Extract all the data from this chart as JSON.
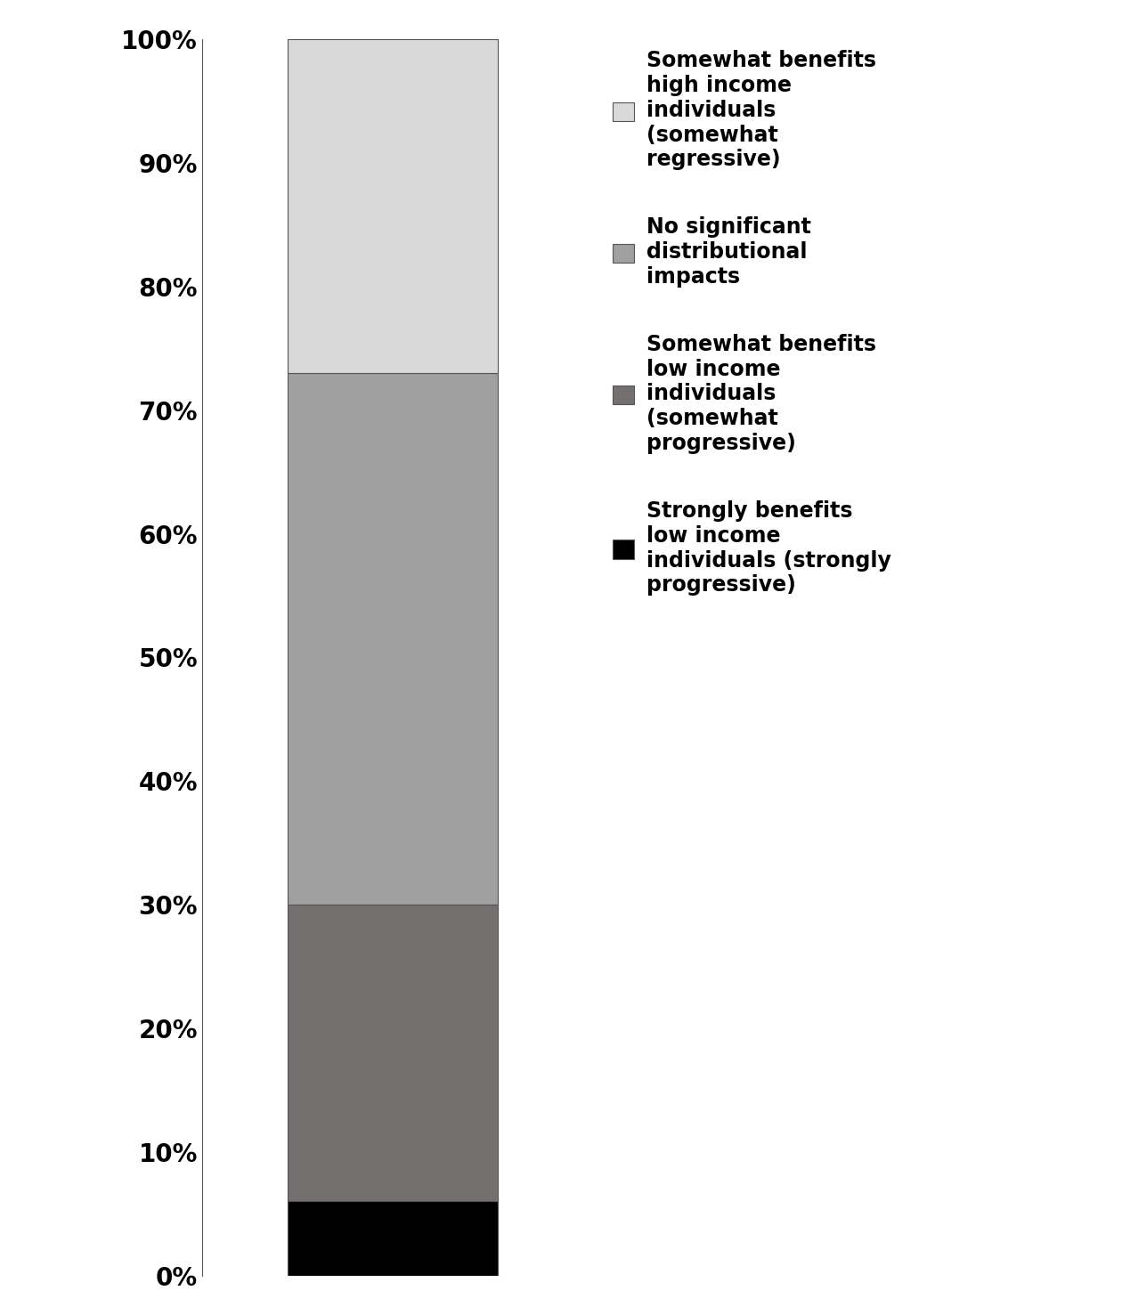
{
  "segments": [
    {
      "label": "Strongly benefits\nlow income\nindividuals (strongly\nprogressive)",
      "value": 6,
      "color": "#000000"
    },
    {
      "label": "Somewhat benefits\nlow income\nindividuals\n(somewhat\nprogressive)",
      "value": 24,
      "color": "#747070"
    },
    {
      "label": "No significant\ndistributional\nimpacts",
      "value": 43,
      "color": "#A0A0A0"
    },
    {
      "label": "Somewhat benefits\nhigh income\nindividuals\n(somewhat\nregressive)",
      "value": 27,
      "color": "#D9D9D9"
    }
  ],
  "ylim": [
    0,
    100
  ],
  "ytick_values": [
    0,
    10,
    20,
    30,
    40,
    50,
    60,
    70,
    80,
    90,
    100
  ],
  "ytick_labels": [
    "0%",
    "10%",
    "20%",
    "30%",
    "40%",
    "50%",
    "60%",
    "70%",
    "80%",
    "90%",
    "100%"
  ],
  "background_color": "#FFFFFF",
  "bar_width": 0.55,
  "legend_fontsize": 17,
  "tick_fontsize": 20,
  "edge_color": "#555555"
}
